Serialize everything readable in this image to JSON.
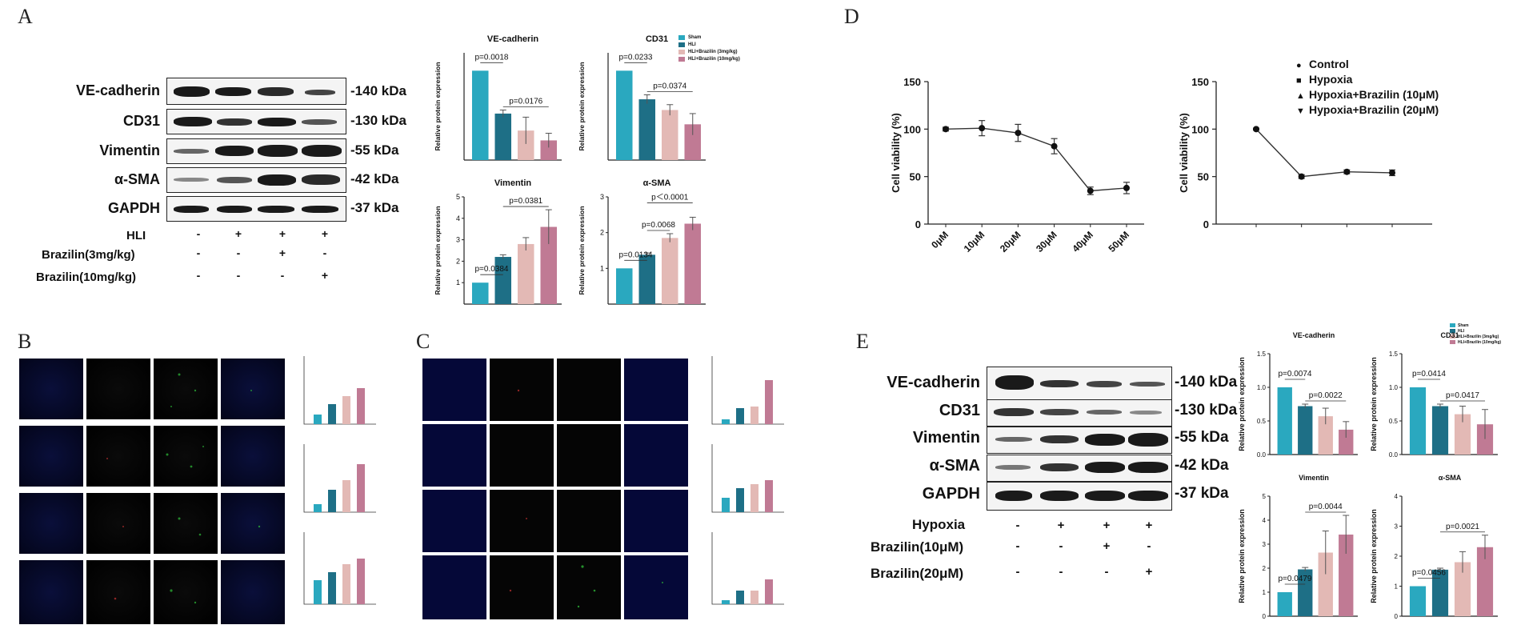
{
  "panels": {
    "a": "A",
    "b": "B",
    "c": "C",
    "d": "D",
    "e": "E"
  },
  "panelA": {
    "blot_labels": [
      "VE-cadherin",
      "CD31",
      "Vimentin",
      "α-SMA",
      "GAPDH"
    ],
    "kda": [
      "-140 kDa",
      "-130 kDa",
      "-55 kDa",
      "-42 kDa",
      "-37 kDa"
    ],
    "treatments": [
      {
        "label": "HLI",
        "signs": [
          "-",
          "+",
          "+",
          "+"
        ]
      },
      {
        "label": "Brazilin(3mg/kg)",
        "signs": [
          "-",
          "-",
          "+",
          "-"
        ]
      },
      {
        "label": "Brazilin(10mg/kg)",
        "signs": [
          "-",
          "-",
          "-",
          "+"
        ]
      }
    ],
    "legend": [
      "Sham",
      "HLI",
      "HLI+Brazilin (3mg/kg)",
      "HLI+Brazilin (10mg/kg)"
    ],
    "ylabel": "Relative protein expression"
  },
  "panelE": {
    "blot_labels": [
      "VE-cadherin",
      "CD31",
      "Vimentin",
      "α-SMA",
      "GAPDH"
    ],
    "kda": [
      "-140 kDa",
      "-130 kDa",
      "-55 kDa",
      "-42 kDa",
      "-37 kDa"
    ],
    "treatments": [
      {
        "label": "Hypoxia",
        "signs": [
          "-",
          "+",
          "+",
          "+"
        ]
      },
      {
        "label": "Brazilin(10μM)",
        "signs": [
          "-",
          "-",
          "+",
          "-"
        ]
      },
      {
        "label": "Brazilin(20μM)",
        "signs": [
          "-",
          "-",
          "-",
          "+"
        ]
      }
    ],
    "legend": [
      "Sham",
      "HLI",
      "HLI+Brazilin (3mg/kg)",
      "HLI+Brazilin (10mg/kg)"
    ],
    "ylabel": "Relative protein expression"
  },
  "colors": {
    "c1": "#2aa8bf",
    "c2": "#1e6f86",
    "c3": "#e3b9b5",
    "c4": "#c07a94"
  },
  "chart_data": [
    {
      "id": "A-VE",
      "type": "bar",
      "title": "VE-cadherin",
      "ylabel": "Relative protein expression",
      "values": [
        1.0,
        0.52,
        0.33,
        0.22
      ],
      "errors": [
        0,
        0.04,
        0.15,
        0.08
      ],
      "ylim": [
        0,
        1.2
      ],
      "ticks": [],
      "p": [
        {
          "text": "p=0.0018",
          "from": 0,
          "to": 1
        },
        {
          "text": "p=0.0176",
          "from": 1,
          "to": 3
        }
      ]
    },
    {
      "id": "A-CD31",
      "type": "bar",
      "title": "CD31",
      "ylabel": "Relative protein expression",
      "values": [
        1.0,
        0.68,
        0.56,
        0.4
      ],
      "errors": [
        0,
        0.05,
        0.06,
        0.12
      ],
      "ylim": [
        0,
        1.2
      ],
      "ticks": [],
      "p": [
        {
          "text": "p=0.0233",
          "from": 0,
          "to": 1
        },
        {
          "text": "p=0.0374",
          "from": 1,
          "to": 3
        }
      ]
    },
    {
      "id": "A-Vim",
      "type": "bar",
      "title": "Vimentin",
      "ylabel": "Relative protein expression",
      "values": [
        1.0,
        2.2,
        2.8,
        3.6
      ],
      "errors": [
        0,
        0.1,
        0.3,
        0.8
      ],
      "ylim": [
        0,
        5
      ],
      "ticks": [
        1,
        2,
        3,
        4,
        5
      ],
      "p": [
        {
          "text": "p=0.0384",
          "from": 0,
          "to": 1
        },
        {
          "text": "p=0.0381",
          "from": 1,
          "to": 3
        }
      ]
    },
    {
      "id": "A-SMA",
      "type": "bar",
      "title": "α-SMA",
      "ylabel": "Relative protein expression",
      "values": [
        1.0,
        1.38,
        1.85,
        2.25
      ],
      "errors": [
        0,
        0.05,
        0.12,
        0.18
      ],
      "ylim": [
        0,
        3
      ],
      "ticks": [
        1,
        2,
        3
      ],
      "p": [
        {
          "text": "p=0.0134",
          "from": 0,
          "to": 1
        },
        {
          "text": "p=0.0068",
          "from": 1,
          "to": 2
        },
        {
          "text": "p＜0.0001",
          "from": 1,
          "to": 3
        }
      ]
    },
    {
      "id": "D-left",
      "type": "line",
      "ylabel": "Cell viability (%)",
      "x": [
        "0μM",
        "10μM",
        "20μM",
        "30μM",
        "40μM",
        "50μM"
      ],
      "values": [
        100,
        101,
        96,
        82,
        35,
        38
      ],
      "errors": [
        2,
        8,
        9,
        8,
        4,
        6
      ],
      "ylim": [
        0,
        150
      ],
      "ticks": [
        0,
        50,
        100,
        150
      ]
    },
    {
      "id": "D-right",
      "type": "line",
      "ylabel": "Cell viability (%)",
      "x": [
        "Control",
        "Hypoxia",
        "Hypoxia+Brazilin (10μM)",
        "Hypoxia+Brazilin (20μM)"
      ],
      "values": [
        100,
        50,
        55,
        54
      ],
      "errors": [
        1,
        2,
        2,
        3
      ],
      "ylim": [
        0,
        150
      ],
      "ticks": [
        0,
        50,
        100,
        150
      ],
      "legend": [
        "Control",
        "Hypoxia",
        "Hypoxia+Brazilin (10μM)",
        "Hypoxia+Brazilin (20μM)"
      ],
      "markers": [
        "●",
        "■",
        "▲",
        "▼"
      ]
    },
    {
      "id": "E-VE",
      "type": "bar",
      "title": "VE-cadherin",
      "ylabel": "Relative protein expression",
      "values": [
        1.0,
        0.72,
        0.57,
        0.37
      ],
      "errors": [
        0,
        0.03,
        0.12,
        0.12
      ],
      "ylim": [
        0,
        1.5
      ],
      "ticks": [
        0.0,
        0.5,
        1.0,
        1.5
      ],
      "p": [
        {
          "text": "p=0.0074",
          "from": 0,
          "to": 1
        },
        {
          "text": "p=0.0022",
          "from": 1,
          "to": 3
        }
      ]
    },
    {
      "id": "E-CD31",
      "type": "bar",
      "title": "CD31",
      "ylabel": "Relative protein expression",
      "values": [
        1.0,
        0.72,
        0.6,
        0.45
      ],
      "errors": [
        0,
        0.03,
        0.12,
        0.22
      ],
      "ylim": [
        0,
        1.5
      ],
      "ticks": [
        0.0,
        0.5,
        1.0,
        1.5
      ],
      "p": [
        {
          "text": "p=0.0414",
          "from": 0,
          "to": 1
        },
        {
          "text": "p=0.0417",
          "from": 1,
          "to": 3
        }
      ]
    },
    {
      "id": "E-Vim",
      "type": "bar",
      "title": "Vimentin",
      "ylabel": "Relative protein expression",
      "values": [
        1.0,
        1.95,
        2.65,
        3.4
      ],
      "errors": [
        0,
        0.08,
        0.9,
        0.8
      ],
      "ylim": [
        0,
        5
      ],
      "ticks": [
        0,
        1,
        2,
        3,
        4,
        5
      ],
      "p": [
        {
          "text": "p=0.0479",
          "from": 0,
          "to": 1
        },
        {
          "text": "p=0.0044",
          "from": 1,
          "to": 3
        }
      ]
    },
    {
      "id": "E-SMA",
      "type": "bar",
      "title": "α-SMA",
      "ylabel": "Relative protein expression",
      "values": [
        1.0,
        1.55,
        1.8,
        2.3
      ],
      "errors": [
        0,
        0.05,
        0.35,
        0.4
      ],
      "ylim": [
        0,
        4
      ],
      "ticks": [
        0,
        1,
        2,
        3,
        4
      ],
      "p": [
        {
          "text": "p=0.0456",
          "from": 0,
          "to": 1
        },
        {
          "text": "p=0.0021",
          "from": 1,
          "to": 3
        }
      ]
    }
  ]
}
